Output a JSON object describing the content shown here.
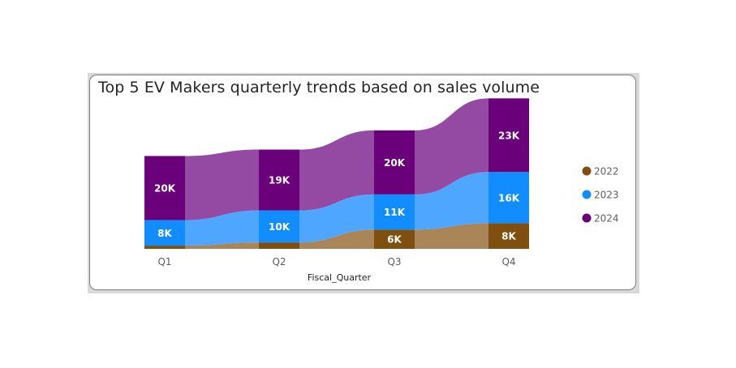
{
  "chart_data": {
    "type": "ribbon",
    "title": "Top 5 EV Makers quarterly trends based on sales volume",
    "xlabel": "Fiscal_Quarter",
    "ylabel": "",
    "categories": [
      "Q1",
      "Q2",
      "Q3",
      "Q4"
    ],
    "series": [
      {
        "name": "2022",
        "color": "#7f4f0f",
        "ribbon_color": "#a98557",
        "values": [
          1000,
          2000,
          6000,
          8000
        ],
        "labels": [
          "",
          "",
          "6K",
          "8K"
        ]
      },
      {
        "name": "2023",
        "color": "#118dff",
        "ribbon_color": "#4ea6ff",
        "values": [
          8000,
          10000,
          11000,
          16000
        ],
        "labels": [
          "8K",
          "10K",
          "11K",
          "16K"
        ]
      },
      {
        "name": "2024",
        "color": "#6b007b",
        "ribbon_color": "#944aa3",
        "values": [
          20000,
          19000,
          20000,
          23000
        ],
        "labels": [
          "20K",
          "19K",
          "20K",
          "23K"
        ]
      }
    ],
    "legend_position": "right",
    "grid": false
  }
}
